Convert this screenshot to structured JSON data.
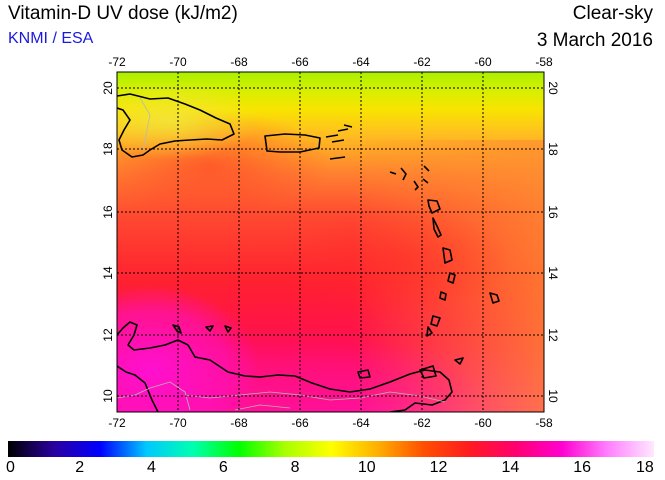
{
  "header": {
    "title": "Vitamin-D UV dose (kJ/m2)",
    "organization": "KNMI / ESA",
    "sky_condition": "Clear-sky",
    "date": "3 March 2016"
  },
  "map": {
    "lon_ticks": [
      "-72",
      "-70",
      "-68",
      "-66",
      "-64",
      "-62",
      "-60",
      "-58"
    ],
    "lat_ticks": [
      "20",
      "18",
      "16",
      "14",
      "12",
      "10"
    ],
    "region": "Caribbean Sea / Lesser Antilles",
    "gridlines": true
  },
  "colorbar": {
    "labels": [
      "0",
      "2",
      "4",
      "6",
      "8",
      "10",
      "12",
      "14",
      "16",
      "18"
    ],
    "colors": [
      "#000000",
      "#2a00a0",
      "#0000ff",
      "#00c8ff",
      "#00ffb0",
      "#00ff00",
      "#a8ff00",
      "#ffff00",
      "#ffb000",
      "#ff5000",
      "#ff1a20",
      "#ff0070",
      "#ff00d0",
      "#ff80ff",
      "#ffe8ff"
    ]
  }
}
